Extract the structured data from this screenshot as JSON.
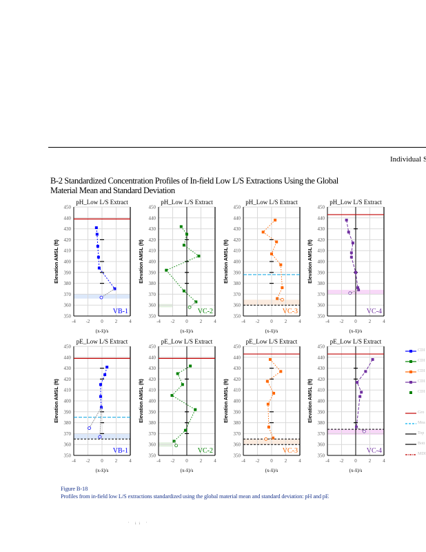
{
  "header": {
    "running_title": "Individual Sp"
  },
  "section_heading": "B-2 Standardized Concentration Profiles of In-field Low L/S Extractions Using the Global Material Mean and Standard Deviation",
  "caption": {
    "figure_number": "Figure B-18",
    "text": "Profiles from in-field low L/S extractions standardized using the global material mean and standard deviation: pH and pE"
  },
  "page_number": "' ii '",
  "legend": [
    {
      "label": "CDI",
      "color": "#0000ff",
      "style": "line-marker"
    },
    {
      "label": "CDI",
      "color": "#008000",
      "style": "line-marker"
    },
    {
      "label": "CDI",
      "color": "#ff6600",
      "style": "line-marker"
    },
    {
      "label": "CDI",
      "color": "#7030a0",
      "style": "line-marker"
    },
    {
      "label": "CDI",
      "color": "#008000",
      "style": "marker"
    },
    {
      "label": "Gro",
      "color": "#c00000",
      "style": "solid"
    },
    {
      "label": "Mea",
      "color": "#00b0f0",
      "style": "dashed"
    },
    {
      "label": "Top",
      "color": "#000000",
      "style": "solid"
    },
    {
      "label": "Bott",
      "color": "#000000",
      "style": "solid"
    },
    {
      "label": "MDI",
      "color": "#c00000",
      "style": "dashdot"
    }
  ],
  "chart_data": [
    {
      "type": "line",
      "title": "pH_Low L/S Extract",
      "site": "VB-1",
      "color": "#0000ff",
      "ylabel": "Elevation AMSL (ft)",
      "xlabel": "(x-x̄)/s",
      "xlim": [
        -4,
        4
      ],
      "ylim": [
        350,
        450
      ],
      "xticks": [
        -4,
        -2,
        0,
        2,
        4
      ],
      "yticks": [
        350,
        360,
        370,
        380,
        390,
        400,
        410,
        420,
        430,
        440,
        450
      ],
      "points": [
        [
          -0.8,
          431
        ],
        [
          -0.7,
          425
        ],
        [
          -0.6,
          414
        ],
        [
          -0.5,
          404
        ],
        [
          -0.4,
          394
        ],
        [
          1.8,
          375
        ]
      ],
      "open_points": [
        [
          -0.1,
          367
        ]
      ],
      "dash": "2,2",
      "ground": 439,
      "mean_line": null,
      "top_line": null,
      "bottom_line": null,
      "band": [
        366,
        370
      ],
      "band_color": "#dce8fa",
      "band_x": [
        -4,
        4
      ],
      "zero_line": false,
      "ticks_at": [
        420,
        400,
        390,
        380
      ]
    },
    {
      "type": "line",
      "title": "pH_Low L/S Extract",
      "site": "VC-2",
      "color": "#008000",
      "ylabel": "Elevation AMSL (ft)",
      "xlabel": "(x-x̄)/s",
      "xlim": [
        -4,
        4
      ],
      "ylim": [
        350,
        450
      ],
      "xticks": [
        -4,
        -2,
        0,
        2,
        4
      ],
      "yticks": [
        350,
        360,
        370,
        380,
        390,
        400,
        410,
        420,
        430,
        440,
        450
      ],
      "points": [
        [
          -0.8,
          432
        ],
        [
          0,
          425
        ],
        [
          -0.4,
          415
        ],
        [
          1.7,
          405
        ],
        [
          -2.9,
          392
        ],
        [
          -0.4,
          373
        ],
        [
          1.3,
          363
        ]
      ],
      "open_points": [
        [
          0.4,
          358
        ]
      ],
      "dash": "1.5,2",
      "ground": null,
      "mean_line": null,
      "top_line": null,
      "bottom_line": null,
      "band": [
        358,
        361
      ],
      "band_color": "#e3f0e0",
      "band_x": [
        -4,
        -2
      ],
      "zero_line": true,
      "ticks_at": [
        420,
        400,
        390,
        380
      ]
    },
    {
      "type": "line",
      "title": "pH_Low L/S Extract",
      "site": "VC-3",
      "color": "#ff6600",
      "ylabel": "Elevation AMSL (ft)",
      "xlabel": "(x-x̄)/s",
      "xlim": [
        -4,
        4
      ],
      "ylim": [
        350,
        450
      ],
      "xticks": [
        -4,
        -2,
        0,
        2,
        4
      ],
      "yticks": [
        350,
        360,
        370,
        380,
        390,
        400,
        410,
        420,
        430,
        440,
        450
      ],
      "points": [
        [
          0.5,
          438
        ],
        [
          -1.2,
          427
        ],
        [
          0.7,
          418
        ],
        [
          0,
          407
        ],
        [
          1.3,
          397
        ],
        [
          1.5,
          376
        ],
        [
          0.8,
          366
        ]
      ],
      "open_points": [
        [
          1.5,
          365
        ]
      ],
      "dash": "1.5,2",
      "ground": null,
      "mean_line": 388,
      "top_line": null,
      "bottom_line": 360,
      "band": [
        360,
        365
      ],
      "band_color": "#fbebdf",
      "band_x": [
        -4,
        4
      ],
      "zero_line": false,
      "ticks_at": [
        420,
        400,
        390,
        380
      ]
    },
    {
      "type": "line",
      "title": "pH_Low L/S Extract",
      "site": "VC-4",
      "color": "#7030a0",
      "ylabel": "Elevation AMSL (ft)",
      "xlabel": "(x-x̄)/s",
      "xlim": [
        -4,
        4
      ],
      "ylim": [
        350,
        450
      ],
      "xticks": [
        -4,
        -2,
        0,
        2,
        4
      ],
      "yticks": [
        350,
        360,
        370,
        380,
        390,
        400,
        410,
        420,
        430,
        440,
        450
      ],
      "points": [
        [
          -1.3,
          438
        ],
        [
          -1.0,
          427
        ],
        [
          -0.4,
          417
        ],
        [
          -0.6,
          408
        ],
        [
          -0.6,
          404
        ],
        [
          0,
          390
        ],
        [
          0.3,
          376
        ],
        [
          0.4,
          374
        ]
      ],
      "open_points": [
        [
          -0.8,
          371
        ]
      ],
      "dash": "4,2",
      "ground": 443,
      "mean_line": null,
      "top_line": null,
      "bottom_line": null,
      "band": [
        370,
        374
      ],
      "band_color": "#f8d8f8",
      "band_x": [
        -4,
        4
      ],
      "zero_line": true,
      "ticks_at": [
        430,
        390
      ]
    },
    {
      "type": "line",
      "title": "pE_Low L/S Extract",
      "site": "VB-1",
      "color": "#0000ff",
      "ylabel": "Elevation AMSL (ft)",
      "xlabel": "(x-x̄)/s",
      "xlim": [
        -4,
        4
      ],
      "ylim": [
        350,
        450
      ],
      "xticks": [
        -4,
        -2,
        0,
        2,
        4
      ],
      "yticks": [
        350,
        360,
        370,
        380,
        390,
        400,
        410,
        420,
        430,
        440,
        450
      ],
      "points": [
        [
          0.7,
          431
        ],
        [
          0.4,
          424
        ],
        [
          -0.2,
          415
        ],
        [
          -0.2,
          404
        ],
        [
          -0.1,
          394
        ]
      ],
      "open_points": [
        [
          -1.8,
          375
        ],
        [
          -0.3,
          367
        ]
      ],
      "dash": "2,2",
      "ground": 439,
      "mean_line": 385,
      "top_line": null,
      "bottom_line": 365,
      "band": [
        365,
        370
      ],
      "band_color": "#dce8fa",
      "band_x": [
        -4,
        4
      ],
      "zero_line": false,
      "ticks_at": [
        430,
        420,
        390,
        380,
        370
      ]
    },
    {
      "type": "line",
      "title": "pE_Low L/S Extract",
      "site": "VC-2",
      "color": "#008000",
      "ylabel": "Elevation AMSL (ft)",
      "xlabel": "(x-x̄)/s",
      "xlim": [
        -4,
        4
      ],
      "ylim": [
        350,
        450
      ],
      "xticks": [
        -4,
        -2,
        0,
        2,
        4
      ],
      "yticks": [
        350,
        360,
        370,
        380,
        390,
        400,
        410,
        420,
        430,
        440,
        450
      ],
      "points": [
        [
          0.5,
          432
        ],
        [
          -1.3,
          425
        ],
        [
          -0.6,
          415
        ],
        [
          -2.1,
          405
        ],
        [
          1.2,
          392
        ],
        [
          -0.2,
          373
        ],
        [
          -1.8,
          363
        ]
      ],
      "open_points": [
        [
          -1.5,
          359
        ]
      ],
      "dash": "1.5,2",
      "ground": 439,
      "mean_line": null,
      "top_line": null,
      "bottom_line": null,
      "band": [
        358,
        362
      ],
      "band_color": "#e3f0e0",
      "band_x": [
        -4,
        -2
      ],
      "zero_line": true,
      "ticks_at": [
        420,
        390,
        380,
        370
      ]
    },
    {
      "type": "line",
      "title": "pE_Low L/S Extract",
      "site": "VC-3",
      "color": "#ff6600",
      "ylabel": "Elevation AMSL (ft)",
      "xlabel": "(x-x̄)/s",
      "xlim": [
        -4,
        4
      ],
      "ylim": [
        350,
        450
      ],
      "xticks": [
        -4,
        -2,
        0,
        2,
        4
      ],
      "yticks": [
        350,
        360,
        370,
        380,
        390,
        400,
        410,
        420,
        430,
        440,
        450
      ],
      "points": [
        [
          -0.2,
          438
        ],
        [
          1.3,
          427
        ],
        [
          -0.6,
          418
        ],
        [
          0.3,
          407
        ],
        [
          -0.5,
          397
        ],
        [
          -0.4,
          376
        ],
        [
          0.2,
          366
        ]
      ],
      "open_points": [
        [
          -0.8,
          365
        ]
      ],
      "dash": "1.5,2",
      "ground": 443,
      "mean_line": null,
      "top_line": 365,
      "bottom_line": 360,
      "band": [
        360,
        365
      ],
      "band_color": "#fbebdf",
      "band_x": [
        -4,
        4
      ],
      "zero_line": false,
      "ticks_at": [
        430,
        420,
        390,
        380
      ]
    },
    {
      "type": "line",
      "title": "pE_Low L/S Extract",
      "site": "VC-4",
      "color": "#7030a0",
      "ylabel": "Elevation AMSL (ft)",
      "xlabel": "(x-x̄)/s",
      "xlim": [
        -4,
        4
      ],
      "ylim": [
        350,
        450
      ],
      "xticks": [
        -4,
        -2,
        0,
        2,
        4
      ],
      "yticks": [
        350,
        360,
        370,
        380,
        390,
        400,
        410,
        420,
        430,
        440,
        450
      ],
      "points": [
        [
          2.4,
          438
        ],
        [
          1.4,
          427
        ],
        [
          0.2,
          417
        ],
        [
          0.8,
          408
        ],
        [
          0.6,
          404
        ],
        [
          0.1,
          376
        ]
      ],
      "open_points": [
        [
          1.2,
          372
        ]
      ],
      "dash": "4,2",
      "ground": 443,
      "mean_line": null,
      "top_line": 374,
      "bottom_line": null,
      "band": [
        369,
        374
      ],
      "band_color": "#f8d8f8",
      "band_x": [
        -4,
        4
      ],
      "zero_line": true,
      "ticks_at": [
        430,
        420,
        380
      ]
    }
  ]
}
